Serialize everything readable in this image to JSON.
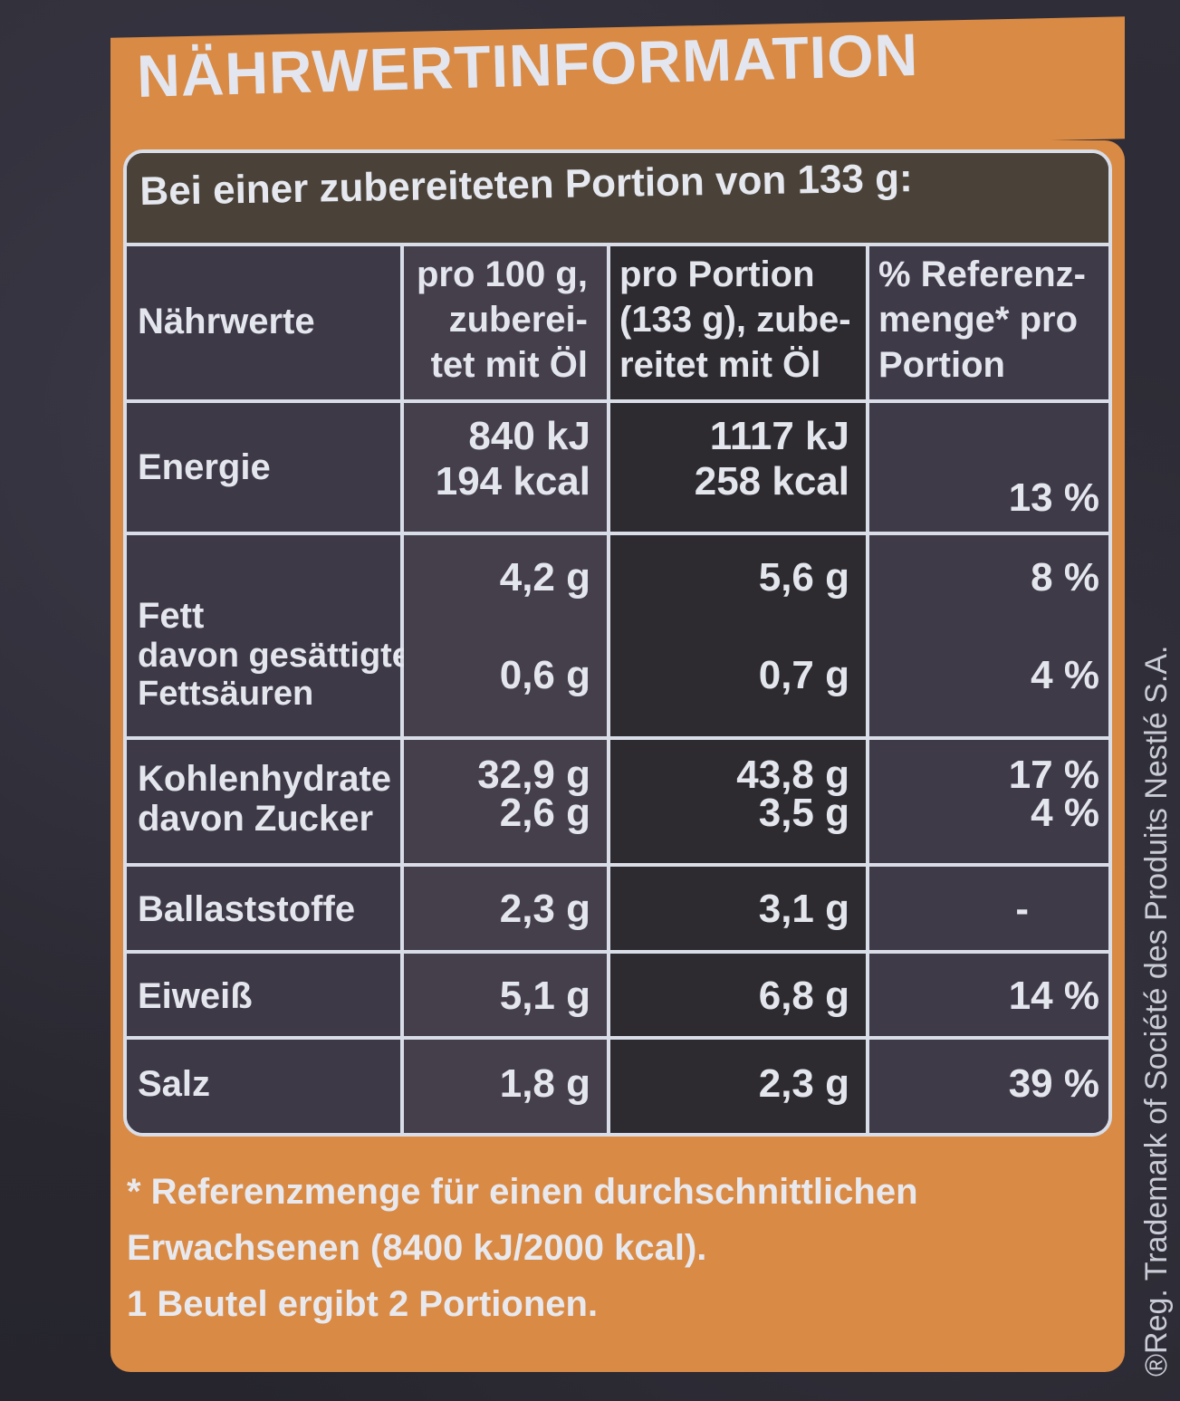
{
  "title": "NÄHRWERTINFORMATION",
  "portion_note": "Bei einer zubereiteten Portion von 133 g:",
  "columns": {
    "c0": "Nährwerte",
    "c1": [
      "pro 100 g,",
      "zuberei-",
      "tet mit Öl"
    ],
    "c2": [
      "pro Portion",
      "(133 g), zube-",
      "reitet mit Öl"
    ],
    "c3": [
      "% Referenz-",
      "menge* pro",
      "Portion"
    ]
  },
  "rows": {
    "energie": {
      "label": "Energie",
      "p100_kj": "840 kJ",
      "p100_kcal": "194 kcal",
      "pp_kj": "1117 kJ",
      "pp_kcal": "258 kcal",
      "ref": "13 %"
    },
    "fett": {
      "label": "Fett",
      "sub_label": "davon gesättigte",
      "sub_label2": "Fettsäuren",
      "p100": "4,2 g",
      "pp": "5,6 g",
      "ref": "8 %",
      "sub_p100": "0,6 g",
      "sub_pp": "0,7 g",
      "sub_ref": "4 %"
    },
    "kohlenhydrate": {
      "label": "Kohlenhydrate",
      "sub_label": "davon Zucker",
      "p100": "32,9 g",
      "pp": "43,8 g",
      "ref": "17 %",
      "sub_p100": "2,6 g",
      "sub_pp": "3,5 g",
      "sub_ref": "4 %"
    },
    "ballaststoffe": {
      "label": "Ballaststoffe",
      "p100": "2,3 g",
      "pp": "3,1 g",
      "ref": "-"
    },
    "eiweiss": {
      "label": "Eiweiß",
      "p100": "5,1 g",
      "pp": "6,8 g",
      "ref": "14 %"
    },
    "salz": {
      "label": "Salz",
      "p100": "1,8 g",
      "pp": "2,3 g",
      "ref": "39 %"
    }
  },
  "footer": {
    "line1": "* Referenzmenge für einen durchschnittlichen",
    "line2": "Erwachsenen (8400 kJ/2000 kcal).",
    "line3": "1 Beutel ergibt 2 Portionen."
  },
  "side_text": "®Reg. Trademark of Société des Produits Nestlé S.A."
}
